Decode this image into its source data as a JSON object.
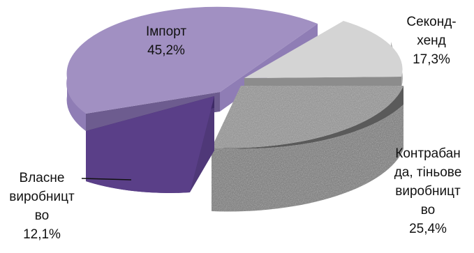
{
  "chart_data": {
    "type": "pie",
    "title": "",
    "slices": [
      {
        "label_lines": [
          "Імпорт"
        ],
        "value_text": "45,2%",
        "value": 45.2,
        "color": "#a190c2"
      },
      {
        "label_lines": [
          "Секонд-",
          "хенд"
        ],
        "value_text": "17,3%",
        "value": 17.3,
        "color": "#d2d2d2"
      },
      {
        "label_lines": [
          "Контрабан",
          "да, тіньове",
          "виробницт",
          "во"
        ],
        "value_text": "25,4%",
        "value": 25.4,
        "color": "#8a8a8a"
      },
      {
        "label_lines": [
          "Власне",
          "виробницт",
          "во"
        ],
        "value_text": "12,1%",
        "value": 12.1,
        "color": "#5a3f88"
      }
    ]
  }
}
